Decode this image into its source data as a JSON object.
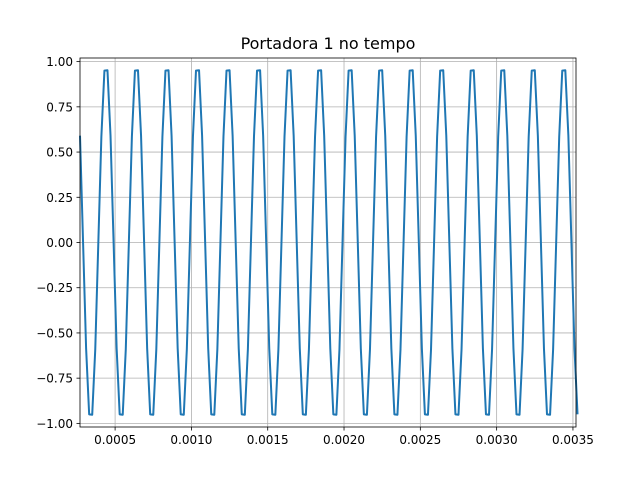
{
  "chart_data": {
    "type": "line",
    "title": "Portadora 1 no tempo",
    "xlabel": "",
    "ylabel": "",
    "xlim": [
      0.00027,
      0.00352
    ],
    "ylim": [
      -1.02,
      1.02
    ],
    "x_ticks": [
      {
        "value": 0.0005,
        "label": "0.0005"
      },
      {
        "value": 0.001,
        "label": "0.0010"
      },
      {
        "value": 0.0015,
        "label": "0.0015"
      },
      {
        "value": 0.002,
        "label": "0.0020"
      },
      {
        "value": 0.0025,
        "label": "0.0025"
      },
      {
        "value": 0.003,
        "label": "0.0030"
      },
      {
        "value": 0.0035,
        "label": "0.0035"
      }
    ],
    "y_ticks": [
      {
        "value": 1.0,
        "label": "1.00"
      },
      {
        "value": 0.75,
        "label": "0.75"
      },
      {
        "value": 0.5,
        "label": "0.50"
      },
      {
        "value": 0.25,
        "label": "0.25"
      },
      {
        "value": 0.0,
        "label": "0.00"
      },
      {
        "value": -0.25,
        "label": "−0.25"
      },
      {
        "value": -0.5,
        "label": "−0.50"
      },
      {
        "value": -0.75,
        "label": "−0.75"
      },
      {
        "value": -1.0,
        "label": "−1.00"
      }
    ],
    "grid": true,
    "line_color": "#1f77b4",
    "series": [
      {
        "amplitude": 1.0,
        "frequency_hz": 5000,
        "phase_rad": -1.26,
        "sample_step_s": 2e-05,
        "x_start": 0.00027,
        "x_end": 0.00352
      }
    ]
  }
}
